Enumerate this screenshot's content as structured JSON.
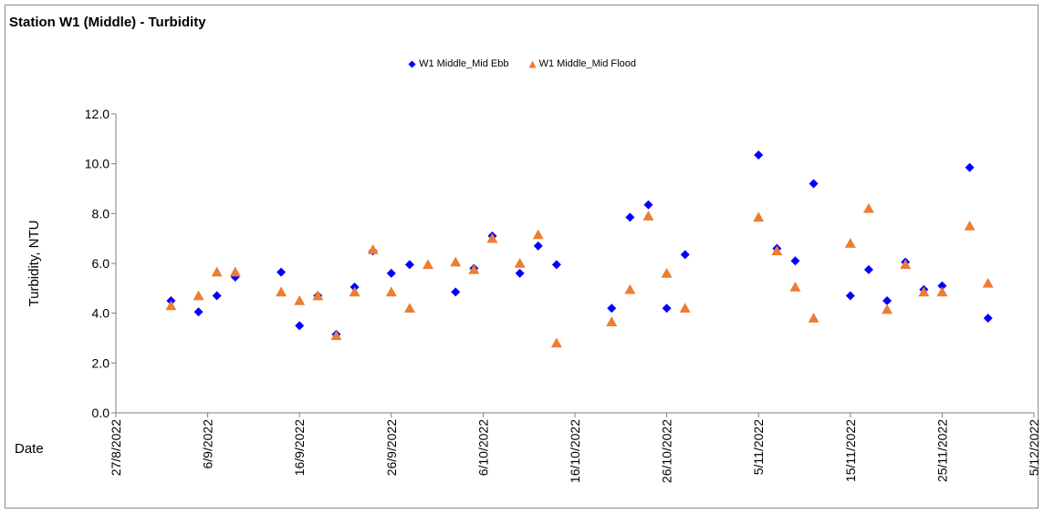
{
  "chart_data": {
    "type": "scatter",
    "title": "Station W1 (Middle) - Turbidity",
    "xlabel": "Date",
    "ylabel": "Turbidity, NTU",
    "ylim": [
      0,
      12
    ],
    "yticks": [
      "0.0",
      "2.0",
      "4.0",
      "6.0",
      "8.0",
      "10.0",
      "12.0"
    ],
    "xlim": [
      "2022-08-27",
      "2022-12-05"
    ],
    "xticks": [
      "27/8/2022",
      "6/9/2022",
      "16/9/2022",
      "26/9/2022",
      "6/10/2022",
      "16/10/2022",
      "26/10/2022",
      "5/11/2022",
      "15/11/2022",
      "25/11/2022",
      "5/12/2022"
    ],
    "grid": false,
    "legend_position": "top-center",
    "series": [
      {
        "name": "W1 Middle_Mid Ebb",
        "marker": "diamond",
        "color": "#0000ff",
        "points": [
          {
            "x": "2022-09-02",
            "y": 4.5
          },
          {
            "x": "2022-09-05",
            "y": 4.05
          },
          {
            "x": "2022-09-07",
            "y": 4.7
          },
          {
            "x": "2022-09-09",
            "y": 5.45
          },
          {
            "x": "2022-09-14",
            "y": 5.65
          },
          {
            "x": "2022-09-16",
            "y": 3.5
          },
          {
            "x": "2022-09-18",
            "y": 4.7
          },
          {
            "x": "2022-09-20",
            "y": 3.15
          },
          {
            "x": "2022-09-22",
            "y": 5.05
          },
          {
            "x": "2022-09-24",
            "y": 6.5
          },
          {
            "x": "2022-09-26",
            "y": 5.6
          },
          {
            "x": "2022-09-28",
            "y": 5.95
          },
          {
            "x": "2022-10-03",
            "y": 4.85
          },
          {
            "x": "2022-10-05",
            "y": 5.8
          },
          {
            "x": "2022-10-07",
            "y": 7.1
          },
          {
            "x": "2022-10-10",
            "y": 5.6
          },
          {
            "x": "2022-10-12",
            "y": 6.7
          },
          {
            "x": "2022-10-14",
            "y": 5.95
          },
          {
            "x": "2022-10-20",
            "y": 4.2
          },
          {
            "x": "2022-10-22",
            "y": 7.85
          },
          {
            "x": "2022-10-24",
            "y": 8.35
          },
          {
            "x": "2022-10-26",
            "y": 4.2
          },
          {
            "x": "2022-10-28",
            "y": 6.35
          },
          {
            "x": "2022-11-05",
            "y": 10.35
          },
          {
            "x": "2022-11-07",
            "y": 6.6
          },
          {
            "x": "2022-11-09",
            "y": 6.1
          },
          {
            "x": "2022-11-11",
            "y": 9.2
          },
          {
            "x": "2022-11-15",
            "y": 4.7
          },
          {
            "x": "2022-11-17",
            "y": 5.75
          },
          {
            "x": "2022-11-19",
            "y": 4.5
          },
          {
            "x": "2022-11-21",
            "y": 6.05
          },
          {
            "x": "2022-11-23",
            "y": 4.95
          },
          {
            "x": "2022-11-25",
            "y": 5.1
          },
          {
            "x": "2022-11-28",
            "y": 9.85
          },
          {
            "x": "2022-11-30",
            "y": 3.8
          }
        ]
      },
      {
        "name": "W1 Middle_Mid Flood",
        "marker": "triangle",
        "color": "#ed7d31",
        "points": [
          {
            "x": "2022-09-02",
            "y": 4.3
          },
          {
            "x": "2022-09-05",
            "y": 4.7
          },
          {
            "x": "2022-09-07",
            "y": 5.65
          },
          {
            "x": "2022-09-09",
            "y": 5.65
          },
          {
            "x": "2022-09-14",
            "y": 4.85
          },
          {
            "x": "2022-09-16",
            "y": 4.5
          },
          {
            "x": "2022-09-18",
            "y": 4.7
          },
          {
            "x": "2022-09-20",
            "y": 3.1
          },
          {
            "x": "2022-09-22",
            "y": 4.85
          },
          {
            "x": "2022-09-24",
            "y": 6.55
          },
          {
            "x": "2022-09-26",
            "y": 4.85
          },
          {
            "x": "2022-09-28",
            "y": 4.2
          },
          {
            "x": "2022-09-30",
            "y": 5.95
          },
          {
            "x": "2022-10-03",
            "y": 6.05
          },
          {
            "x": "2022-10-05",
            "y": 5.75
          },
          {
            "x": "2022-10-07",
            "y": 7.0
          },
          {
            "x": "2022-10-10",
            "y": 6.0
          },
          {
            "x": "2022-10-12",
            "y": 7.15
          },
          {
            "x": "2022-10-14",
            "y": 2.8
          },
          {
            "x": "2022-10-20",
            "y": 3.65
          },
          {
            "x": "2022-10-22",
            "y": 4.95
          },
          {
            "x": "2022-10-24",
            "y": 7.9
          },
          {
            "x": "2022-10-26",
            "y": 5.6
          },
          {
            "x": "2022-10-28",
            "y": 4.2
          },
          {
            "x": "2022-11-05",
            "y": 7.85
          },
          {
            "x": "2022-11-07",
            "y": 6.5
          },
          {
            "x": "2022-11-09",
            "y": 5.05
          },
          {
            "x": "2022-11-11",
            "y": 3.8
          },
          {
            "x": "2022-11-15",
            "y": 6.8
          },
          {
            "x": "2022-11-17",
            "y": 8.2
          },
          {
            "x": "2022-11-19",
            "y": 4.15
          },
          {
            "x": "2022-11-21",
            "y": 5.95
          },
          {
            "x": "2022-11-23",
            "y": 4.85
          },
          {
            "x": "2022-11-25",
            "y": 4.85
          },
          {
            "x": "2022-11-28",
            "y": 7.5
          },
          {
            "x": "2022-11-30",
            "y": 5.2
          }
        ]
      }
    ]
  }
}
